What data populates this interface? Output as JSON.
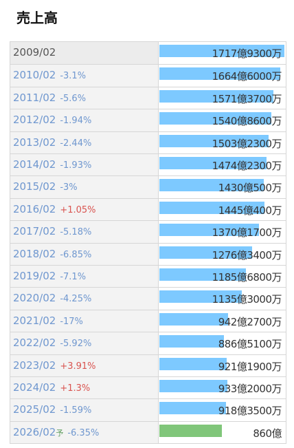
{
  "title": "売上高",
  "chart_data": {
    "type": "bar",
    "unit": "億円",
    "max_value": 1717.93,
    "rows": [
      {
        "year": "2009/02",
        "pct": "",
        "direction": "",
        "forecast": false,
        "value": 1717.93,
        "label": "1717億9300万"
      },
      {
        "year": "2010/02",
        "pct": "-3.1%",
        "direction": "down",
        "forecast": false,
        "value": 1664.6,
        "label": "1664億6000万"
      },
      {
        "year": "2011/02",
        "pct": "-5.6%",
        "direction": "down",
        "forecast": false,
        "value": 1571.37,
        "label": "1571億3700万"
      },
      {
        "year": "2012/02",
        "pct": "-1.94%",
        "direction": "down",
        "forecast": false,
        "value": 1540.86,
        "label": "1540億8600万"
      },
      {
        "year": "2013/02",
        "pct": "-2.44%",
        "direction": "down",
        "forecast": false,
        "value": 1503.23,
        "label": "1503億2300万"
      },
      {
        "year": "2014/02",
        "pct": "-1.93%",
        "direction": "down",
        "forecast": false,
        "value": 1474.23,
        "label": "1474億2300万"
      },
      {
        "year": "2015/02",
        "pct": "-3%",
        "direction": "down",
        "forecast": false,
        "value": 1430.05,
        "label": "1430億500万"
      },
      {
        "year": "2016/02",
        "pct": "+1.05%",
        "direction": "up",
        "forecast": false,
        "value": 1445.04,
        "label": "1445億400万"
      },
      {
        "year": "2017/02",
        "pct": "-5.18%",
        "direction": "down",
        "forecast": false,
        "value": 1370.17,
        "label": "1370億1700万"
      },
      {
        "year": "2018/02",
        "pct": "-6.85%",
        "direction": "down",
        "forecast": false,
        "value": 1276.34,
        "label": "1276億3400万"
      },
      {
        "year": "2019/02",
        "pct": "-7.1%",
        "direction": "down",
        "forecast": false,
        "value": 1185.68,
        "label": "1185億6800万"
      },
      {
        "year": "2020/02",
        "pct": "-4.25%",
        "direction": "down",
        "forecast": false,
        "value": 1135.3,
        "label": "1135億3000万"
      },
      {
        "year": "2021/02",
        "pct": "-17%",
        "direction": "down",
        "forecast": false,
        "value": 942.27,
        "label": "942億2700万"
      },
      {
        "year": "2022/02",
        "pct": "-5.92%",
        "direction": "down",
        "forecast": false,
        "value": 886.51,
        "label": "886億5100万"
      },
      {
        "year": "2023/02",
        "pct": "+3.91%",
        "direction": "up",
        "forecast": false,
        "value": 921.19,
        "label": "921億1900万"
      },
      {
        "year": "2024/02",
        "pct": "+1.3%",
        "direction": "up",
        "forecast": false,
        "value": 933.2,
        "label": "933億2000万"
      },
      {
        "year": "2025/02",
        "pct": "-1.59%",
        "direction": "down",
        "forecast": false,
        "value": 918.35,
        "label": "918億3500万"
      },
      {
        "year": "2026/02",
        "forecast_mark": "予",
        "pct": "-6.35%",
        "direction": "down",
        "forecast": true,
        "value": 860,
        "label": "860億"
      }
    ]
  },
  "colors": {
    "bar": "#7dc9ff",
    "forecast_bar": "#80c67a",
    "down_text": "#6f97cf",
    "up_text": "#d9534f"
  }
}
